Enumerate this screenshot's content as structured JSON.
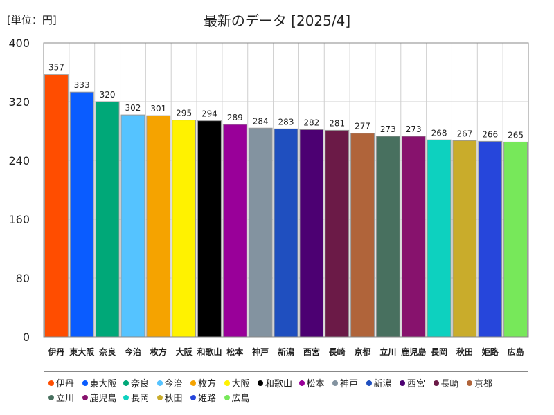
{
  "unit_label": "[単位：円]",
  "title": "最新のデータ [2025/4]",
  "chart_data": {
    "type": "bar",
    "title": "最新のデータ [2025/4]",
    "ylabel": "単位：円",
    "ylim": [
      0,
      400
    ],
    "yticks": [
      0,
      80,
      160,
      240,
      320,
      400
    ],
    "grid": true,
    "legend_position": "bottom",
    "categories": [
      "伊丹",
      "東大阪",
      "奈良",
      "今治",
      "枚方",
      "大阪",
      "和歌山",
      "松本",
      "神戸",
      "新潟",
      "西宮",
      "長崎",
      "京都",
      "立川",
      "鹿児島",
      "長岡",
      "秋田",
      "姫路",
      "広島"
    ],
    "values": [
      357,
      333,
      320,
      302,
      301,
      295,
      294,
      289,
      284,
      283,
      282,
      281,
      277,
      273,
      273,
      268,
      267,
      266,
      265
    ],
    "colors": [
      "#ff4d00",
      "#0a5cff",
      "#00a878",
      "#55c3ff",
      "#f5a300",
      "#fff200",
      "#000000",
      "#990099",
      "#8393a0",
      "#1f4fbf",
      "#4c0072",
      "#6b1a47",
      "#b0643a",
      "#48705f",
      "#87126d",
      "#0dd1bf",
      "#c9ac2b",
      "#2646db",
      "#77e85a"
    ]
  }
}
